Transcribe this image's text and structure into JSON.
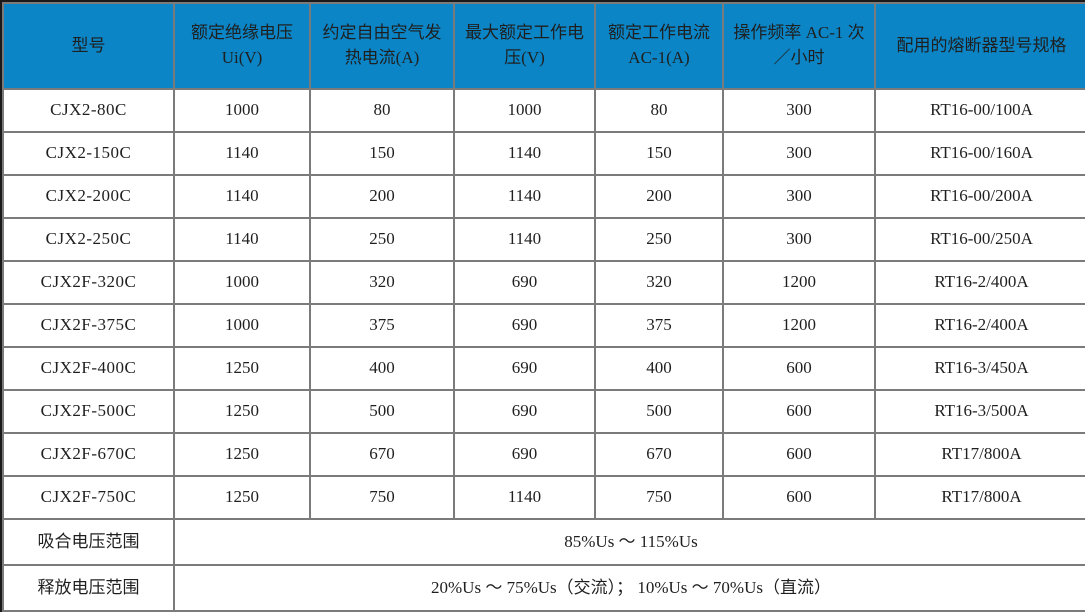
{
  "table": {
    "style": {
      "header_bg": "#0b85c6",
      "header_text_color": "#ffffff",
      "grid_color": "#7b7b7b",
      "outer_border_color": "#1a1a1a",
      "body_bg": "#ffffff",
      "body_text_color": "#1f1f1f"
    },
    "columns": [
      {
        "label": "型号"
      },
      {
        "label": "额定绝缘电压 Ui(V)"
      },
      {
        "label": "约定自由空气发热电流(A)"
      },
      {
        "label": "最大额定工作电压(V)"
      },
      {
        "label": "额定工作电流 AC-1(A)"
      },
      {
        "label": "操作频率 AC-1 次／小时"
      },
      {
        "label": "配用的熔断器型号规格"
      }
    ],
    "rows": [
      [
        "CJX2-80C",
        "1000",
        "80",
        "1000",
        "80",
        "300",
        "RT16-00/100A"
      ],
      [
        "CJX2-150C",
        "1140",
        "150",
        "1140",
        "150",
        "300",
        "RT16-00/160A"
      ],
      [
        "CJX2-200C",
        "1140",
        "200",
        "1140",
        "200",
        "300",
        "RT16-00/200A"
      ],
      [
        "CJX2-250C",
        "1140",
        "250",
        "1140",
        "250",
        "300",
        "RT16-00/250A"
      ],
      [
        "CJX2F-320C",
        "1000",
        "320",
        "690",
        "320",
        "1200",
        "RT16-2/400A"
      ],
      [
        "CJX2F-375C",
        "1000",
        "375",
        "690",
        "375",
        "1200",
        "RT16-2/400A"
      ],
      [
        "CJX2F-400C",
        "1250",
        "400",
        "690",
        "400",
        "600",
        "RT16-3/450A"
      ],
      [
        "CJX2F-500C",
        "1250",
        "500",
        "690",
        "500",
        "600",
        "RT16-3/500A"
      ],
      [
        "CJX2F-670C",
        "1250",
        "670",
        "690",
        "670",
        "600",
        "RT17/800A"
      ],
      [
        "CJX2F-750C",
        "1250",
        "750",
        "1140",
        "750",
        "600",
        "RT17/800A"
      ]
    ],
    "footer_rows": [
      {
        "label": "吸合电压范围",
        "value": "85%Us ～ 115%Us"
      },
      {
        "label": "释放电压范围",
        "value": "20%Us ～ 75%Us（交流）； 10%Us ～ 70%Us（直流）"
      }
    ]
  }
}
